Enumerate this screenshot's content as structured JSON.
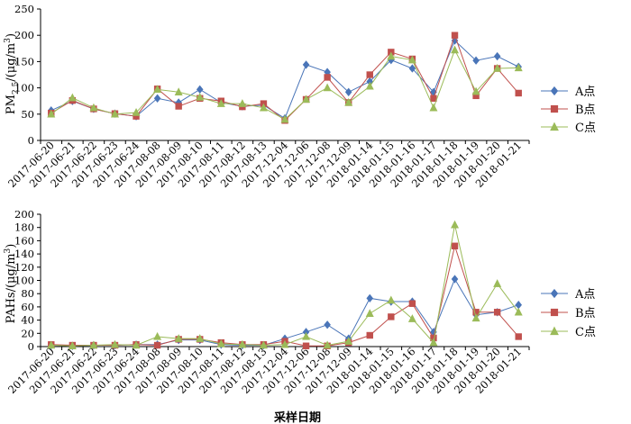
{
  "chart_data": [
    {
      "type": "line",
      "ylabel_main": "PM",
      "ylabel_sub": "2.5",
      "ylabel_unit": "/(μg/m",
      "ylabel_sup": "3",
      "ylabel_end": ")",
      "xlabel": "",
      "ylim": [
        0,
        250
      ],
      "yticks": [
        0,
        50,
        100,
        150,
        200,
        250
      ],
      "grid": false,
      "legend_position": "right",
      "categories": [
        "2017-06-20",
        "2017-06-21",
        "2017-06-22",
        "2017-06-23",
        "2017-06-24",
        "2017-08-08",
        "2017-08-09",
        "2017-08-10",
        "2017-08-11",
        "2017-08-12",
        "2017-08-13",
        "2017-12-04",
        "2017-12-06",
        "2017-12-08",
        "2017-12-09",
        "2018-01-14",
        "2018-01-15",
        "2018-01-16",
        "2018-01-17",
        "2018-01-18",
        "2018-01-19",
        "2018-01-20",
        "2018-01-21"
      ],
      "series": [
        {
          "name": "A点",
          "marker": "diamond",
          "color": "#4a75b8",
          "values": [
            57,
            75,
            60,
            51,
            46,
            80,
            72,
            97,
            72,
            65,
            67,
            42,
            144,
            130,
            92,
            112,
            153,
            137,
            92,
            190,
            152,
            160,
            140
          ]
        },
        {
          "name": "B点",
          "marker": "square",
          "color": "#c0504d",
          "values": [
            52,
            76,
            60,
            51,
            46,
            98,
            65,
            80,
            75,
            64,
            70,
            38,
            78,
            120,
            72,
            125,
            168,
            155,
            80,
            200,
            85,
            137,
            90
          ]
        },
        {
          "name": "C点",
          "marker": "triangle",
          "color": "#9bbb59",
          "values": [
            50,
            81,
            62,
            50,
            53,
            97,
            92,
            82,
            70,
            70,
            62,
            40,
            78,
            100,
            72,
            103,
            160,
            153,
            62,
            172,
            93,
            137,
            138
          ]
        }
      ]
    },
    {
      "type": "line",
      "ylabel_main": "PAHs/(μg/m",
      "ylabel_sup": "3",
      "ylabel_end": ")",
      "xlabel": "采样日期",
      "ylim": [
        0,
        200
      ],
      "yticks": [
        0,
        20,
        40,
        60,
        80,
        100,
        120,
        140,
        160,
        180,
        200
      ],
      "grid": false,
      "legend_position": "right",
      "categories": [
        "2017-06-20",
        "2017-06-21",
        "2017-06-22",
        "2017-06-23",
        "2017-06-24",
        "2017-08-08",
        "2017-08-09",
        "2017-08-10",
        "2017-08-11",
        "2017-08-12",
        "2017-08-13",
        "2017-12-04",
        "2017-12-06",
        "2017-12-08",
        "2017-12-09",
        "2018-01-14",
        "2018-01-15",
        "2018-01-16",
        "2018-01-17",
        "2018-01-18",
        "2018-01-19",
        "2018-01-20",
        "2018-01-21"
      ],
      "series": [
        {
          "name": "A点",
          "marker": "diamond",
          "color": "#4a75b8",
          "values": [
            2,
            1,
            2,
            2,
            3,
            3,
            10,
            10,
            3,
            2,
            2,
            12,
            22,
            33,
            12,
            73,
            68,
            68,
            22,
            102,
            48,
            52,
            63
          ]
        },
        {
          "name": "B点",
          "marker": "square",
          "color": "#c0504d",
          "values": [
            3,
            2,
            2,
            2,
            3,
            2,
            11,
            11,
            6,
            3,
            3,
            8,
            1,
            1,
            6,
            17,
            45,
            65,
            13,
            152,
            52,
            52,
            15
          ]
        },
        {
          "name": "C点",
          "marker": "triangle",
          "color": "#9bbb59",
          "values": [
            2,
            1,
            2,
            3,
            2,
            15,
            12,
            12,
            4,
            3,
            2,
            3,
            15,
            2,
            8,
            50,
            70,
            42,
            6,
            184,
            43,
            95,
            52
          ]
        }
      ]
    }
  ]
}
